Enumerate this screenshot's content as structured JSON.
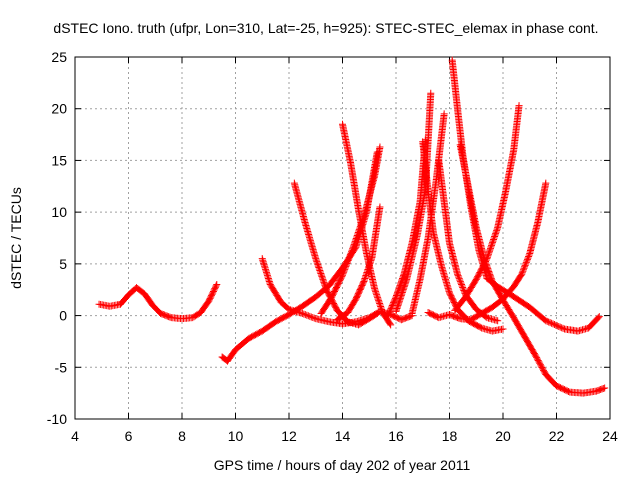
{
  "chart_data": {
    "type": "scatter",
    "title": "dSTEC Iono. truth (ufpr, Lon=310, Lat=-25, h=925): STEC-STEC_elemax in phase cont.",
    "xlabel": "GPS time / hours of day 202 of year 2011",
    "ylabel": "dSTEC  / TECUs",
    "xlim": [
      4,
      24
    ],
    "ylim": [
      -10,
      25
    ],
    "xticks": [
      "4",
      "6",
      "8",
      "10",
      "12",
      "14",
      "16",
      "18",
      "20",
      "22",
      "24"
    ],
    "yticks": [
      "-10",
      "-5",
      "0",
      "5",
      "10",
      "15",
      "20",
      "25"
    ],
    "grid": true,
    "marker": "+",
    "color": "#ff0000",
    "series": [
      {
        "points": [
          [
            4.9,
            1.1
          ],
          [
            5.3,
            0.9
          ],
          [
            5.7,
            1.1
          ],
          [
            6.0,
            2.0
          ],
          [
            6.3,
            2.7
          ],
          [
            6.6,
            2.1
          ],
          [
            6.9,
            1.0
          ],
          [
            7.2,
            0.2
          ],
          [
            7.6,
            -0.2
          ],
          [
            8.0,
            -0.3
          ],
          [
            8.4,
            -0.2
          ],
          [
            8.7,
            0.3
          ],
          [
            9.0,
            1.4
          ],
          [
            9.3,
            3.0
          ]
        ]
      },
      {
        "points": [
          [
            9.5,
            -4.0
          ],
          [
            9.7,
            -4.4
          ],
          [
            10.0,
            -3.3
          ],
          [
            10.5,
            -2.2
          ],
          [
            11.0,
            -1.5
          ],
          [
            11.5,
            -0.6
          ],
          [
            12.0,
            0.1
          ],
          [
            12.5,
            0.9
          ],
          [
            13.0,
            1.8
          ],
          [
            13.5,
            2.9
          ],
          [
            14.0,
            4.6
          ],
          [
            14.5,
            6.6
          ],
          [
            14.9,
            10.0
          ],
          [
            15.3,
            15.8
          ]
        ]
      },
      {
        "points": [
          [
            11.0,
            5.5
          ],
          [
            11.3,
            3.0
          ],
          [
            11.7,
            1.3
          ],
          [
            12.0,
            0.6
          ],
          [
            12.5,
            0.2
          ],
          [
            13.0,
            -0.3
          ],
          [
            13.5,
            -0.6
          ],
          [
            14.0,
            -0.8
          ],
          [
            14.5,
            -0.6
          ],
          [
            15.0,
            -0.2
          ],
          [
            15.4,
            0.4
          ],
          [
            15.8,
            0.1
          ],
          [
            16.2,
            -0.4
          ],
          [
            16.6,
            0.0
          ]
        ]
      },
      {
        "points": [
          [
            12.2,
            12.8
          ],
          [
            12.6,
            9.0
          ],
          [
            13.0,
            5.5
          ],
          [
            13.4,
            2.5
          ],
          [
            13.8,
            0.5
          ],
          [
            14.2,
            -0.6
          ],
          [
            14.6,
            -0.9
          ],
          [
            15.0,
            -0.3
          ],
          [
            15.3,
            0.2
          ]
        ]
      },
      {
        "points": [
          [
            14.0,
            18.5
          ],
          [
            14.3,
            14.8
          ],
          [
            14.6,
            10.2
          ],
          [
            14.9,
            6.0
          ],
          [
            15.2,
            2.6
          ],
          [
            15.5,
            0.3
          ],
          [
            15.8,
            -0.9
          ]
        ]
      },
      {
        "points": [
          [
            13.2,
            0.2
          ],
          [
            13.6,
            1.8
          ],
          [
            14.0,
            3.9
          ],
          [
            14.4,
            6.6
          ],
          [
            14.8,
            9.6
          ],
          [
            15.2,
            13.5
          ],
          [
            15.4,
            16.3
          ]
        ]
      },
      {
        "points": [
          [
            13.8,
            -0.4
          ],
          [
            14.2,
            0.3
          ],
          [
            14.5,
            1.6
          ],
          [
            14.8,
            3.3
          ],
          [
            15.1,
            5.6
          ],
          [
            15.4,
            10.5
          ]
        ]
      },
      {
        "points": [
          [
            15.7,
            0.0
          ],
          [
            16.0,
            1.8
          ],
          [
            16.3,
            4.0
          ],
          [
            16.6,
            7.0
          ],
          [
            16.9,
            11.0
          ],
          [
            17.1,
            17.0
          ]
        ]
      },
      {
        "points": [
          [
            16.0,
            0.4
          ],
          [
            16.4,
            3.5
          ],
          [
            16.8,
            7.8
          ],
          [
            17.1,
            12.2
          ],
          [
            17.3,
            21.5
          ]
        ]
      },
      {
        "points": [
          [
            16.6,
            0.2
          ],
          [
            16.9,
            3.5
          ],
          [
            17.2,
            7.5
          ],
          [
            17.5,
            13.0
          ],
          [
            17.8,
            19.5
          ]
        ]
      },
      {
        "points": [
          [
            17.0,
            16.8
          ],
          [
            17.2,
            12.0
          ],
          [
            17.4,
            8.0
          ],
          [
            17.7,
            4.8
          ],
          [
            18.0,
            2.2
          ],
          [
            18.3,
            0.6
          ],
          [
            18.7,
            -0.5
          ],
          [
            19.2,
            -1.2
          ],
          [
            19.6,
            -1.5
          ],
          [
            20.0,
            -1.3
          ]
        ]
      },
      {
        "points": [
          [
            17.6,
            15.0
          ],
          [
            17.8,
            11.0
          ],
          [
            18.0,
            7.0
          ],
          [
            18.3,
            4.0
          ],
          [
            18.6,
            2.0
          ],
          [
            19.0,
            0.6
          ],
          [
            19.4,
            -0.2
          ],
          [
            19.8,
            -0.5
          ]
        ]
      },
      {
        "points": [
          [
            18.1,
            24.7
          ],
          [
            18.3,
            20.0
          ],
          [
            18.5,
            15.5
          ],
          [
            18.8,
            10.5
          ],
          [
            19.1,
            6.3
          ],
          [
            19.4,
            3.6
          ],
          [
            19.8,
            2.8
          ],
          [
            20.3,
            2.0
          ],
          [
            21.0,
            0.8
          ],
          [
            21.6,
            -0.5
          ],
          [
            22.3,
            -1.3
          ],
          [
            22.8,
            -1.5
          ],
          [
            23.2,
            -1.2
          ],
          [
            23.6,
            -0.1
          ]
        ]
      },
      {
        "points": [
          [
            18.4,
            16.5
          ],
          [
            18.7,
            12.5
          ],
          [
            19.0,
            8.5
          ],
          [
            19.3,
            5.5
          ],
          [
            19.6,
            3.3
          ],
          [
            20.0,
            1.5
          ],
          [
            20.4,
            -0.2
          ],
          [
            20.8,
            -2.0
          ],
          [
            21.2,
            -3.8
          ],
          [
            21.6,
            -5.7
          ],
          [
            22.0,
            -6.8
          ],
          [
            22.5,
            -7.4
          ],
          [
            23.0,
            -7.5
          ],
          [
            23.5,
            -7.3
          ],
          [
            23.8,
            -7.0
          ]
        ]
      },
      {
        "points": [
          [
            18.2,
            0.5
          ],
          [
            18.6,
            1.8
          ],
          [
            19.0,
            3.5
          ],
          [
            19.4,
            5.5
          ],
          [
            19.8,
            8.5
          ],
          [
            20.1,
            12.0
          ],
          [
            20.4,
            16.0
          ],
          [
            20.6,
            20.3
          ]
        ]
      },
      {
        "points": [
          [
            17.2,
            0.3
          ],
          [
            17.6,
            -0.2
          ],
          [
            18.0,
            0.1
          ],
          [
            18.4,
            -0.3
          ],
          [
            18.8,
            -0.4
          ],
          [
            19.2,
            0.2
          ],
          [
            19.6,
            0.8
          ],
          [
            20.0,
            1.6
          ],
          [
            20.4,
            2.8
          ],
          [
            20.7,
            4.0
          ],
          [
            21.0,
            6.0
          ],
          [
            21.3,
            9.0
          ],
          [
            21.6,
            12.8
          ]
        ]
      }
    ]
  }
}
